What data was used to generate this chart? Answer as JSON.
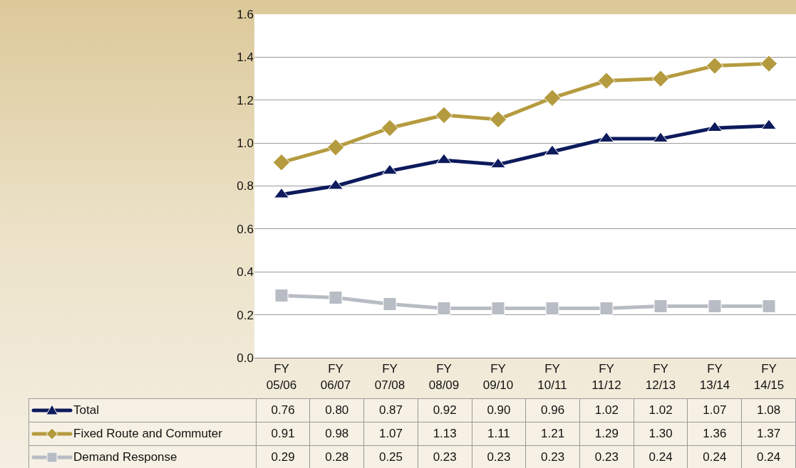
{
  "chart_data": {
    "type": "line",
    "categories": [
      "FY 05/06",
      "FY 06/07",
      "FY 07/08",
      "FY 08/09",
      "FY 09/10",
      "FY 10/11",
      "FY 11/12",
      "FY 12/13",
      "FY 13/14",
      "FY 14/15"
    ],
    "series": [
      {
        "name": "Total",
        "color": "#0d1a5c",
        "marker": "triangle",
        "values": [
          0.76,
          0.8,
          0.87,
          0.92,
          0.9,
          0.96,
          1.02,
          1.02,
          1.07,
          1.08
        ],
        "value_labels": [
          "0.76",
          "0.80",
          "0.87",
          "0.92",
          "0.90",
          "0.96",
          "1.02",
          "1.02",
          "1.07",
          "1.08"
        ]
      },
      {
        "name": "Fixed Route and Commuter",
        "color": "#b59b3f",
        "marker": "diamond",
        "values": [
          0.91,
          0.98,
          1.07,
          1.13,
          1.11,
          1.21,
          1.29,
          1.3,
          1.36,
          1.37
        ],
        "value_labels": [
          "0.91",
          "0.98",
          "1.07",
          "1.13",
          "1.11",
          "1.21",
          "1.29",
          "1.30",
          "1.36",
          "1.37"
        ]
      },
      {
        "name": "Demand Response",
        "color": "#b8bcc4",
        "marker": "square",
        "values": [
          0.29,
          0.28,
          0.25,
          0.23,
          0.23,
          0.23,
          0.23,
          0.24,
          0.24,
          0.24
        ],
        "value_labels": [
          "0.29",
          "0.28",
          "0.25",
          "0.23",
          "0.23",
          "0.23",
          "0.23",
          "0.24",
          "0.24",
          "0.24"
        ]
      }
    ],
    "ylim": [
      0,
      1.6
    ],
    "yticks": [
      {
        "value": 0,
        "label": "0.0"
      },
      {
        "value": 0.2,
        "label": "0.2"
      },
      {
        "value": 0.4,
        "label": "0.4"
      },
      {
        "value": 0.6,
        "label": "0.6"
      },
      {
        "value": 0.8,
        "label": "0.8"
      },
      {
        "value": 1.0,
        "label": "1.0"
      },
      {
        "value": 1.2,
        "label": "1.2"
      },
      {
        "value": 1.4,
        "label": "1.4"
      },
      {
        "value": 1.6,
        "label": "1.6"
      }
    ],
    "grid": "y",
    "legend": "bottom",
    "line_style": "solid"
  }
}
